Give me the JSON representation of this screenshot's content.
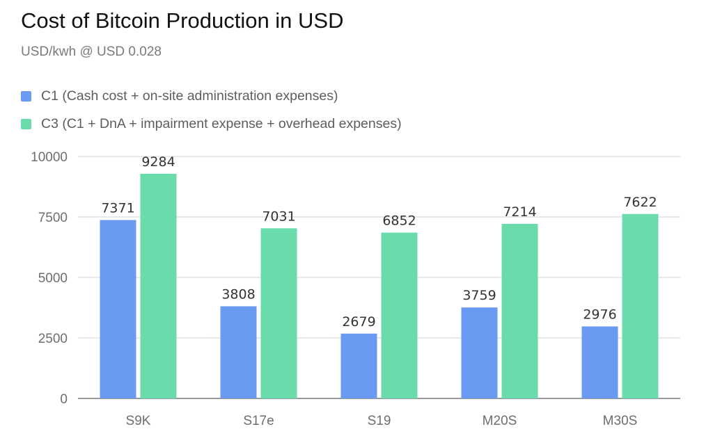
{
  "chart_data": {
    "type": "bar",
    "title": "Cost of Bitcoin Production in USD",
    "subtitle": "USD/kwh @ USD 0.028",
    "categories": [
      "S9K",
      "S17e",
      "S19",
      "M20S",
      "M30S"
    ],
    "series": [
      {
        "name": "C1 (Cash cost + on-site administration expenses)",
        "color": "#6a9af2",
        "values": [
          7371,
          3808,
          2679,
          3759,
          2976
        ]
      },
      {
        "name": "C3  (C1 + DnA + impairment expense + overhead expenses)",
        "color": "#6adcac",
        "values": [
          9284,
          7031,
          6852,
          7214,
          7622
        ]
      }
    ],
    "yticks": [
      0,
      2500,
      5000,
      7500,
      10000
    ],
    "ylim": [
      0,
      10000
    ],
    "grid": true,
    "legend_position": "top-left"
  }
}
